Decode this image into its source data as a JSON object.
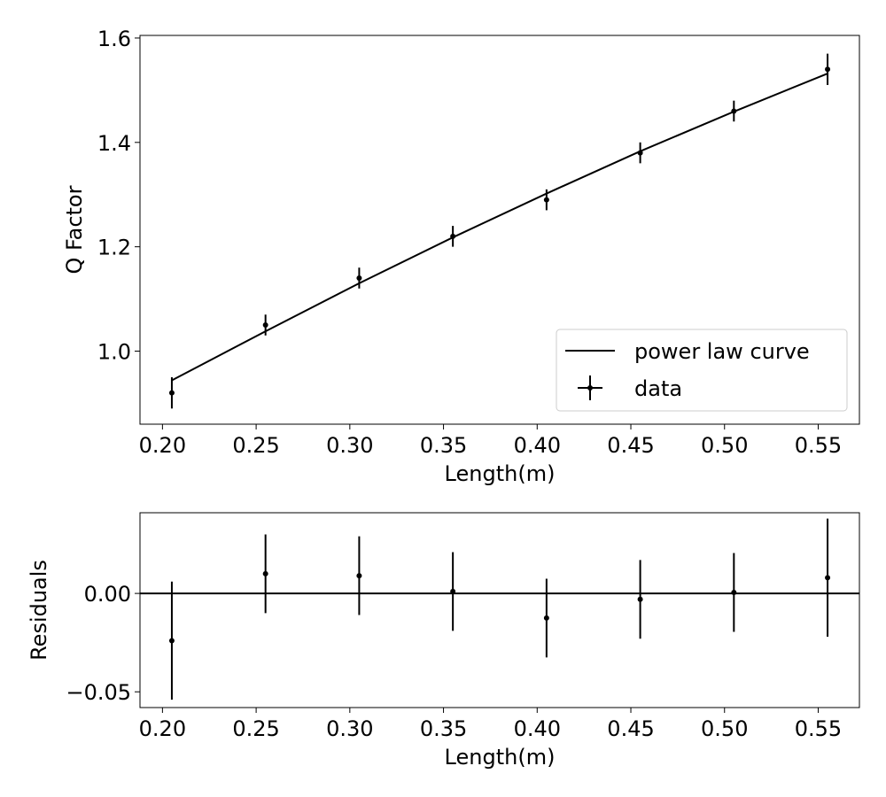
{
  "chart_data": [
    {
      "type": "line",
      "xlabel": "Length(m)",
      "ylabel": "Q Factor",
      "xlim": [
        0.188,
        0.572
      ],
      "ylim": [
        0.86,
        1.605
      ],
      "x_ticks": [
        0.2,
        0.25,
        0.3,
        0.35,
        0.4,
        0.45,
        0.5,
        0.55
      ],
      "x_tick_labels": [
        "0.20",
        "0.25",
        "0.30",
        "0.35",
        "0.40",
        "0.45",
        "0.50",
        "0.55"
      ],
      "y_ticks": [
        1.0,
        1.2,
        1.4,
        1.6
      ],
      "y_tick_labels": [
        "1.0",
        "1.2",
        "1.4",
        "1.6"
      ],
      "grid": false,
      "legend": {
        "placement": "lower-right",
        "entries": [
          "power law curve",
          "data"
        ]
      },
      "series": [
        {
          "name": "power law curve",
          "type": "line",
          "color": "#000000",
          "x": [
            0.205,
            0.255,
            0.305,
            0.355,
            0.405,
            0.455,
            0.505,
            0.555
          ],
          "y": [
            0.944,
            1.038,
            1.13,
            1.218,
            1.302,
            1.383,
            1.459,
            1.532
          ]
        },
        {
          "name": "data",
          "type": "errorbar",
          "color": "#000000",
          "x": [
            0.205,
            0.255,
            0.305,
            0.355,
            0.405,
            0.455,
            0.505,
            0.555
          ],
          "y": [
            0.92,
            1.05,
            1.14,
            1.22,
            1.29,
            1.38,
            1.46,
            1.54
          ],
          "yerr": [
            0.03,
            0.02,
            0.02,
            0.02,
            0.02,
            0.02,
            0.02,
            0.03
          ]
        }
      ]
    },
    {
      "type": "scatter",
      "xlabel": "Length(m)",
      "ylabel": "Residuals",
      "xlim": [
        0.188,
        0.572
      ],
      "ylim": [
        -0.058,
        0.041
      ],
      "x_ticks": [
        0.2,
        0.25,
        0.3,
        0.35,
        0.4,
        0.45,
        0.5,
        0.55
      ],
      "x_tick_labels": [
        "0.20",
        "0.25",
        "0.30",
        "0.35",
        "0.40",
        "0.45",
        "0.50",
        "0.55"
      ],
      "y_ticks": [
        -0.05,
        0.0
      ],
      "y_tick_labels": [
        "−0.05",
        "0.00"
      ],
      "grid": false,
      "reference_line_y": 0,
      "series": [
        {
          "type": "errorbar",
          "color": "#000000",
          "x": [
            0.205,
            0.255,
            0.305,
            0.355,
            0.405,
            0.455,
            0.505,
            0.555
          ],
          "y": [
            -0.024,
            0.01,
            0.009,
            0.001,
            -0.0125,
            -0.003,
            0.0005,
            0.008
          ],
          "yerr": [
            0.03,
            0.02,
            0.02,
            0.02,
            0.02,
            0.02,
            0.02,
            0.03
          ]
        }
      ]
    }
  ]
}
